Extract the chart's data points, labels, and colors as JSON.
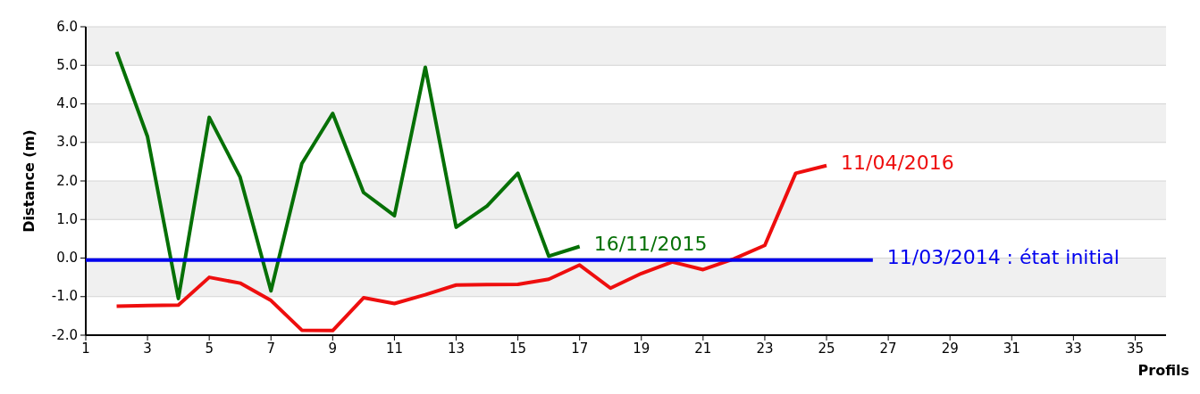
{
  "chart_data": {
    "type": "line",
    "xlabel": "Profils",
    "ylabel": "Distance (m)",
    "xlim": [
      1,
      36
    ],
    "xticks": [
      1,
      3,
      5,
      7,
      9,
      11,
      13,
      15,
      17,
      19,
      21,
      23,
      25,
      27,
      29,
      31,
      33,
      35
    ],
    "ylim": [
      -2,
      6
    ],
    "yticks": [
      {
        "value": -2,
        "label": "-2.0"
      },
      {
        "value": -1,
        "label": "-1.0"
      },
      {
        "value": 0,
        "label": "0.0"
      },
      {
        "value": 1,
        "label": "1.0"
      },
      {
        "value": 2,
        "label": "2.0"
      },
      {
        "value": 3,
        "label": "3.0"
      },
      {
        "value": 4,
        "label": "4.0"
      },
      {
        "value": 5,
        "label": "5.0"
      },
      {
        "value": 6,
        "label": "6.0"
      }
    ],
    "grid": "y",
    "marker": "none",
    "line_style": "solid",
    "series": [
      {
        "name": "16/11/2015",
        "color": "#067006",
        "x": [
          2,
          3,
          4,
          5,
          6,
          7,
          8,
          9,
          10,
          11,
          12,
          13,
          14,
          15,
          16,
          17
        ],
        "values": [
          5.35,
          3.15,
          -1.05,
          3.65,
          2.1,
          -0.85,
          2.45,
          3.75,
          1.7,
          1.1,
          4.95,
          0.8,
          1.35,
          2.2,
          0.05,
          0.3
        ]
      },
      {
        "name": "11/04/2016",
        "color": "#ee0e0e",
        "x": [
          2,
          3,
          4,
          5,
          6,
          7,
          8,
          9,
          10,
          11,
          12,
          13,
          14,
          15,
          16,
          17,
          18,
          19,
          20,
          21,
          22,
          23,
          24,
          25
        ],
        "values": [
          -1.25,
          -1.23,
          -1.22,
          -0.5,
          -0.65,
          -1.1,
          -1.87,
          -1.88,
          -1.03,
          -1.18,
          -0.95,
          -0.7,
          -0.69,
          -0.68,
          -0.55,
          -0.18,
          -0.78,
          -0.4,
          -0.1,
          -0.3,
          -0.02,
          0.33,
          2.2,
          2.4
        ]
      },
      {
        "name": "11/03/2014 : état initial",
        "color": "#0000ee",
        "x": [
          1,
          26.5
        ],
        "values": [
          -0.05,
          -0.05
        ]
      }
    ]
  }
}
